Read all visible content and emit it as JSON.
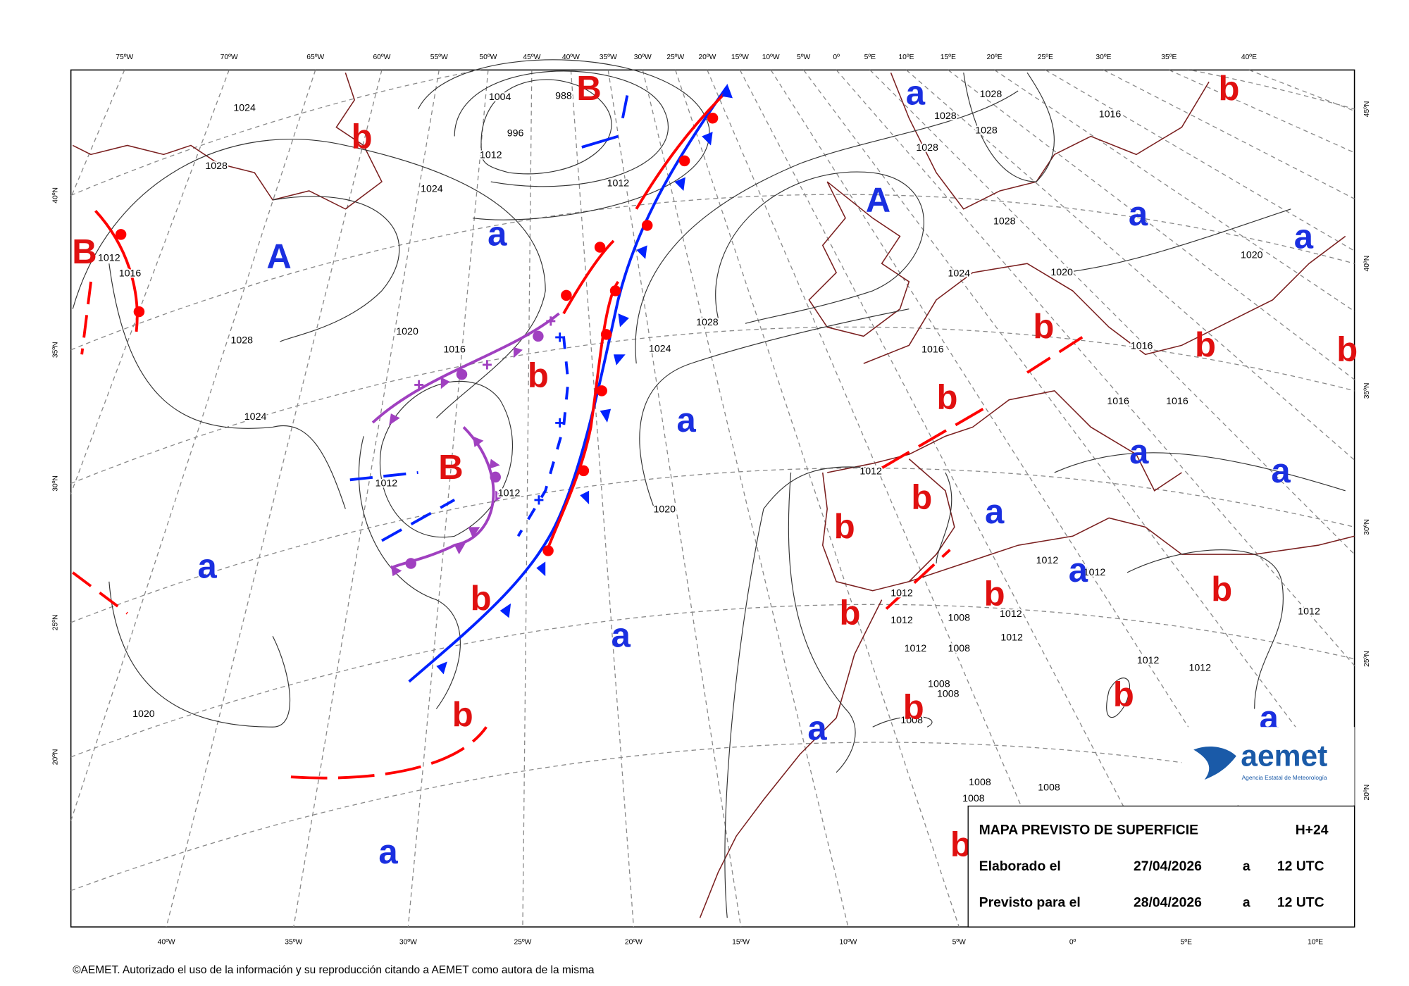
{
  "top_axis_labels": [
    "75ºW",
    "70ºW",
    "65ºW",
    "60ºW",
    "55ºW",
    "50ºW",
    "45ºW",
    "40ºW",
    "35ºW",
    "30ºW",
    "25ºW",
    "20ºW",
    "15ºW",
    "10ºW",
    "5ºW",
    "0º",
    "5ºE",
    "10ºE",
    "15ºE",
    "20ºE",
    "25ºE",
    "30ºE",
    "35ºE",
    "40ºE"
  ],
  "bottom_axis_labels": [
    "40ºW",
    "35ºW",
    "30ºW",
    "25ºW",
    "20ºW",
    "15ºW",
    "10ºW",
    "5ºW",
    "0º",
    "5ºE",
    "10ºE"
  ],
  "left_axis_labels": [
    "40ºN",
    "35ºN",
    "30ºN",
    "25ºN",
    "20ºN"
  ],
  "right_axis_labels": [
    "45ºN",
    "40ºN",
    "35ºN",
    "30ºN",
    "25ºN",
    "20ºN"
  ],
  "pressure_centers": [
    "B",
    "b",
    "b",
    "a",
    "A",
    "a",
    "a",
    "B",
    "A",
    "a",
    "b",
    "b",
    "b",
    "b",
    "b",
    "a",
    "a",
    "a",
    "B",
    "b",
    "a",
    "b",
    "a",
    "a",
    "b",
    "b",
    "b",
    "b",
    "a",
    "b",
    "b",
    "b",
    "a",
    "a",
    "a",
    "b"
  ],
  "isobar_labels": [
    "1028",
    "1028",
    "1028",
    "1028",
    "1028",
    "1028",
    "1028",
    "1028",
    "1024",
    "1024",
    "1024",
    "1024",
    "1024",
    "1020",
    "1020",
    "1020",
    "1020",
    "1020",
    "1016",
    "1016",
    "1016",
    "1016",
    "1016",
    "1016",
    "1016",
    "1012",
    "1012",
    "1012",
    "1012",
    "1012",
    "1012",
    "1012",
    "1012",
    "1012",
    "1012",
    "1012",
    "1012",
    "1012",
    "1012",
    "1012",
    "1008",
    "1008",
    "1008",
    "1008",
    "1008",
    "1008",
    "1008",
    "1008",
    "988",
    "996",
    "1004",
    "1012"
  ],
  "info_box": {
    "title": "MAPA PREVISTO DE SUPERFICIE",
    "lead": "H+24",
    "rows": [
      [
        "Elaborado el",
        "27/04/2026",
        "a",
        "12 UTC"
      ],
      [
        "Previsto para el",
        "28/04/2026",
        "a",
        "12 UTC"
      ]
    ]
  },
  "logo": {
    "name": "aemet",
    "tagline": "Agencia Estatal de Meteorología"
  },
  "copyright": "©AEMET. Autorizado el uso de la información y su reproducción citando a AEMET como autora de la misma"
}
